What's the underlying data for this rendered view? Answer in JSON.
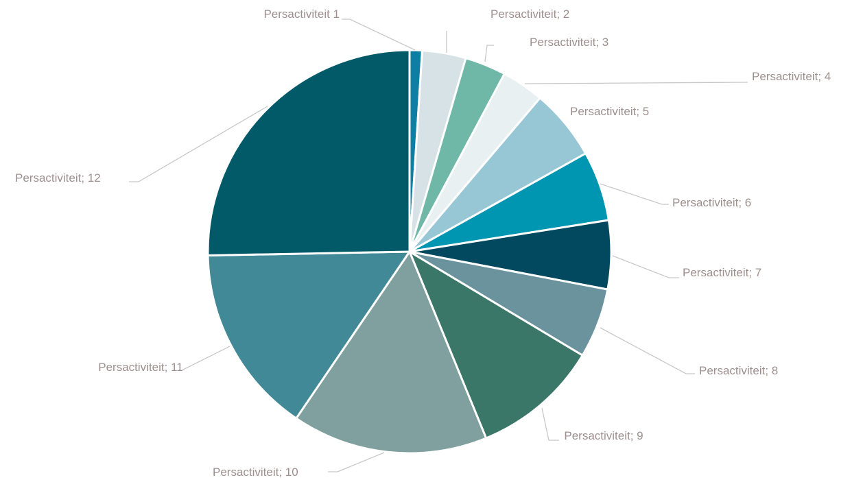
{
  "chart_data": {
    "type": "pie",
    "categories": [
      "Persactiviteit 1",
      "Persactiviteit; 2",
      "Persactiviteit; 3",
      "Persactiviteit; 4",
      "Persactiviteit; 5",
      "Persactiviteit; 6",
      "Persactiviteit; 7",
      "Persactiviteit; 8",
      "Persactiviteit; 9",
      "Persactiviteit; 10",
      "Persactiviteit; 11",
      "Persactiviteit; 12"
    ],
    "values": [
      1.0,
      3.5,
      3.3,
      3.4,
      5.7,
      5.6,
      5.5,
      5.6,
      10.2,
      15.7,
      15.2,
      25.3
    ],
    "colors": [
      "#0c7fa2",
      "#d6e2e6",
      "#6fb8a8",
      "#e9f0f1",
      "#97c7d4",
      "#0095b0",
      "#02485e",
      "#6a939e",
      "#3a7768",
      "#7fa09e",
      "#418996",
      "#025a69"
    ]
  }
}
